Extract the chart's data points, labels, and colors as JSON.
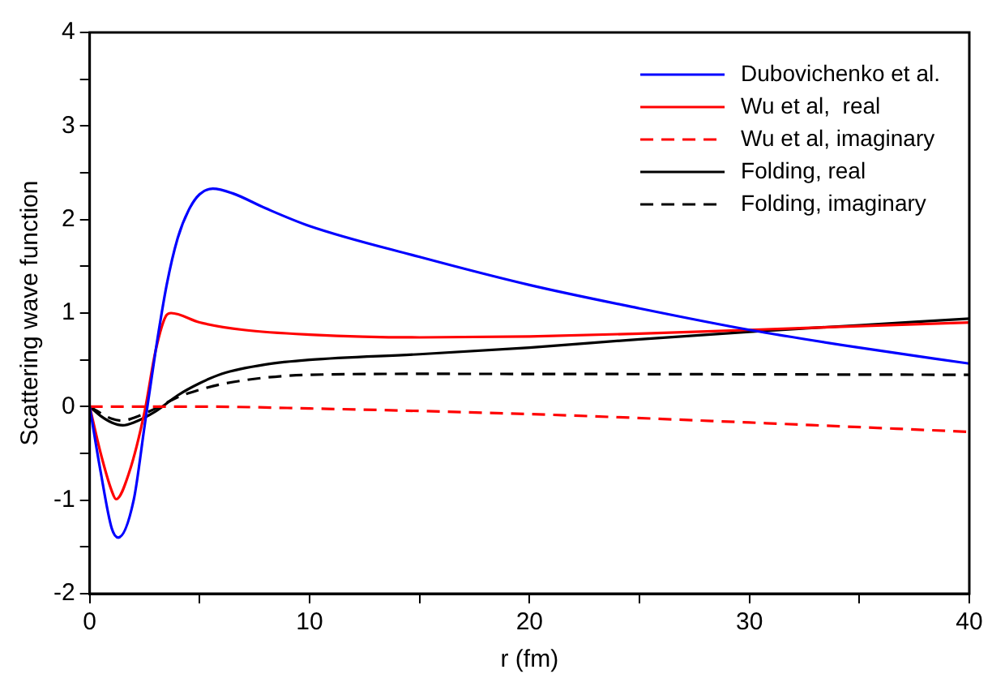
{
  "chart_data": {
    "type": "line",
    "xlabel": "r (fm)",
    "ylabel": "Scattering wave function",
    "xlim": [
      0,
      40
    ],
    "ylim": [
      -2,
      4
    ],
    "xticks": [
      0,
      {
        "value": 5,
        "label": null
      },
      10,
      {
        "value": 15,
        "label": null
      },
      20,
      {
        "value": 25,
        "label": null
      },
      30,
      {
        "value": 35,
        "label": null
      },
      40
    ],
    "yticks": [
      -2,
      {
        "value": -1.5,
        "label": null
      },
      -1,
      {
        "value": -0.5,
        "label": null
      },
      0,
      {
        "value": 0.5,
        "label": null
      },
      1,
      {
        "value": 1.5,
        "label": null
      },
      2,
      {
        "value": 2.5,
        "label": null
      },
      3,
      {
        "value": 3.5,
        "label": null
      },
      4
    ],
    "grid": false,
    "legend": "top right",
    "marker": "none",
    "series": [
      {
        "name": "Dubovichenko et al.",
        "color": "#0000ff",
        "line_style": "solid",
        "x": [
          0,
          0.5,
          1,
          1.3,
          2,
          2.5,
          3,
          3.5,
          4,
          4.5,
          5,
          5.6,
          6.5,
          8,
          10,
          15,
          20,
          25,
          30,
          35,
          40
        ],
        "values": [
          0,
          -0.7,
          -1.3,
          -1.4,
          -1.0,
          -0.2,
          0.6,
          1.3,
          1.8,
          2.1,
          2.27,
          2.33,
          2.28,
          2.12,
          1.93,
          1.6,
          1.3,
          1.05,
          0.82,
          0.63,
          0.46
        ]
      },
      {
        "name": "Wu et al,  real",
        "color": "#ff0000",
        "line_style": "solid",
        "x": [
          0,
          0.5,
          1,
          1.2,
          1.8,
          2.5,
          3,
          3.5,
          3.7,
          5,
          7,
          10,
          15,
          20,
          25,
          30,
          35,
          40
        ],
        "values": [
          0,
          -0.5,
          -0.9,
          -0.99,
          -0.7,
          -0.05,
          0.6,
          0.98,
          1.0,
          0.9,
          0.82,
          0.77,
          0.74,
          0.75,
          0.78,
          0.82,
          0.86,
          0.9
        ]
      },
      {
        "name": "Wu et al, imaginary",
        "color": "#ff0000",
        "line_style": "dashed",
        "x": [
          0,
          5,
          10,
          20,
          30,
          40
        ],
        "values": [
          0,
          0,
          -0.02,
          -0.08,
          -0.17,
          -0.27
        ]
      },
      {
        "name": "Folding, real",
        "color": "#000000",
        "line_style": "solid",
        "x": [
          0,
          0.5,
          1,
          1.5,
          2,
          3,
          4,
          5,
          6,
          8,
          10,
          15,
          20,
          25,
          30,
          35,
          40
        ],
        "values": [
          0,
          -0.1,
          -0.17,
          -0.2,
          -0.17,
          -0.05,
          0.12,
          0.25,
          0.35,
          0.45,
          0.5,
          0.56,
          0.63,
          0.72,
          0.8,
          0.87,
          0.94
        ]
      },
      {
        "name": "Folding, imaginary",
        "color": "#000000",
        "line_style": "dashed",
        "x": [
          0,
          1,
          1.5,
          2,
          3,
          4,
          5,
          6,
          8,
          10,
          15,
          40
        ],
        "values": [
          0,
          -0.13,
          -0.15,
          -0.12,
          -0.02,
          0.1,
          0.18,
          0.24,
          0.31,
          0.34,
          0.35,
          0.34
        ]
      }
    ]
  }
}
